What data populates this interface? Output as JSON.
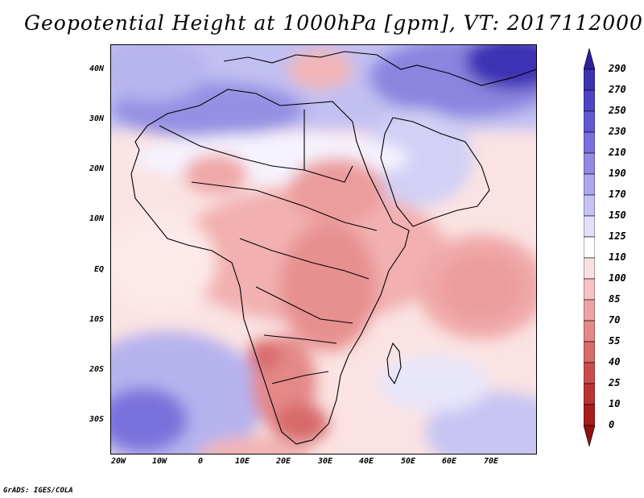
{
  "title": "Geopotential Height at 1000hPa [gpm], VT: 2017112000",
  "footer": "GrADS: IGES/COLA",
  "map": {
    "lat_labels": [
      "40N",
      "30N",
      "20N",
      "10N",
      "EQ",
      "10S",
      "20S",
      "30S"
    ],
    "lon_labels": [
      "20W",
      "10W",
      "0",
      "10E",
      "20E",
      "30E",
      "40E",
      "50E",
      "60E",
      "70E"
    ]
  },
  "colorbar": {
    "labels": [
      "290",
      "270",
      "250",
      "230",
      "210",
      "190",
      "170",
      "150",
      "125",
      "110",
      "100",
      "85",
      "70",
      "55",
      "40",
      "25",
      "10",
      "0"
    ],
    "colors": [
      "#2e1f9c",
      "#3c32b4",
      "#4d45c6",
      "#6058d2",
      "#7870dc",
      "#928ae4",
      "#aca6ec",
      "#c6c2f2",
      "#e2e0f8",
      "#ffffff",
      "#fbe0e0",
      "#f6c2c2",
      "#eea4a4",
      "#e48888",
      "#d86a6a",
      "#cc4c4c",
      "#bc3333",
      "#a81e1e",
      "#8f1010"
    ]
  }
}
